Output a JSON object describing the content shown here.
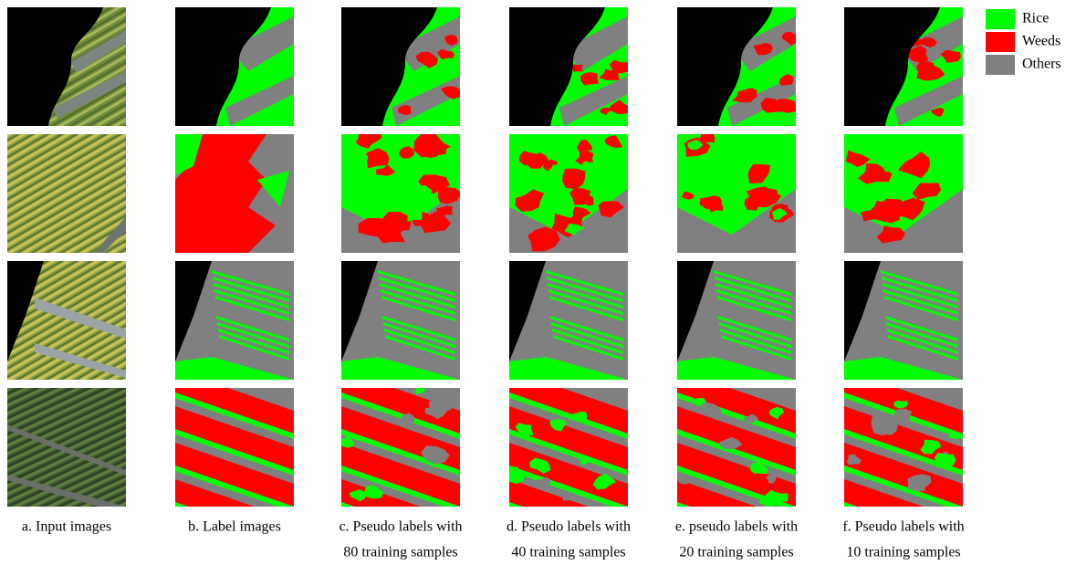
{
  "captions": [
    [
      "a. Input images"
    ],
    [
      "b. Label images"
    ],
    [
      "c. Pseudo labels with",
      "80 training samples"
    ],
    [
      "d. Pseudo labels with",
      "40 training samples"
    ],
    [
      "e. pseudo labels with",
      "20 training samples"
    ],
    [
      "f. Pseudo labels with",
      "10 training samples"
    ]
  ],
  "legend": [
    {
      "label": "Rice",
      "color": "#00ff00"
    },
    {
      "label": "Weeds",
      "color": "#ff0000"
    },
    {
      "label": "Others",
      "color": "#808080"
    }
  ]
}
